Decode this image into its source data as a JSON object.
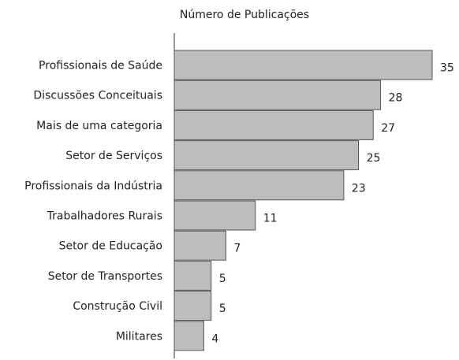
{
  "chart_data": {
    "type": "barh",
    "title": "Número de Publicações",
    "categories": [
      "Profissionais de Saúde",
      "Discussões Conceituais",
      "Mais de uma categoria",
      "Setor de Serviços",
      "Profissionais da Indústria",
      "Trabalhadores Rurais",
      "Setor de Educação",
      "Setor de Transportes",
      "Construção Civil",
      "Militares"
    ],
    "values": [
      35,
      28,
      27,
      25,
      23,
      11,
      7,
      5,
      5,
      4
    ],
    "color": "#bdbdbd",
    "xlim": [
      0,
      35
    ]
  }
}
